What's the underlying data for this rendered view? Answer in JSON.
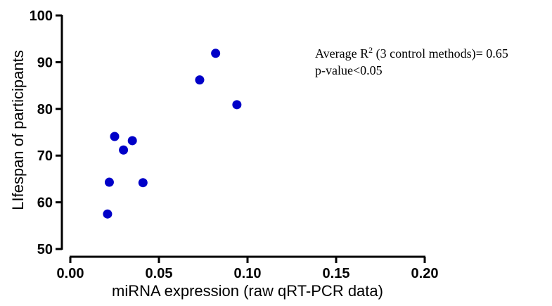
{
  "chart_data": {
    "type": "scatter",
    "xlabel": "miRNA expression  (raw qRT-PCR data)",
    "ylabel": "LIfespan of participants",
    "xlim": [
      0.0,
      0.2
    ],
    "ylim": [
      50,
      100
    ],
    "x_ticks": [
      "0.00",
      "0.05",
      "0.10",
      "0.15",
      "0.20"
    ],
    "y_ticks": [
      "50",
      "60",
      "70",
      "80",
      "90",
      "100"
    ],
    "grid": false,
    "point_color": "#0000c8",
    "points": [
      {
        "x": 0.021,
        "y": 57.5
      },
      {
        "x": 0.022,
        "y": 64.3
      },
      {
        "x": 0.025,
        "y": 74.1
      },
      {
        "x": 0.03,
        "y": 71.2
      },
      {
        "x": 0.035,
        "y": 73.2
      },
      {
        "x": 0.041,
        "y": 64.2
      },
      {
        "x": 0.073,
        "y": 86.2
      },
      {
        "x": 0.082,
        "y": 91.9
      },
      {
        "x": 0.094,
        "y": 80.9
      }
    ],
    "annotations": {
      "r2_prefix": "Average R",
      "r2_sup": "2",
      "r2_suffix": " (3 control methods)= 0.65",
      "pvalue": "p-value<0.05"
    }
  }
}
